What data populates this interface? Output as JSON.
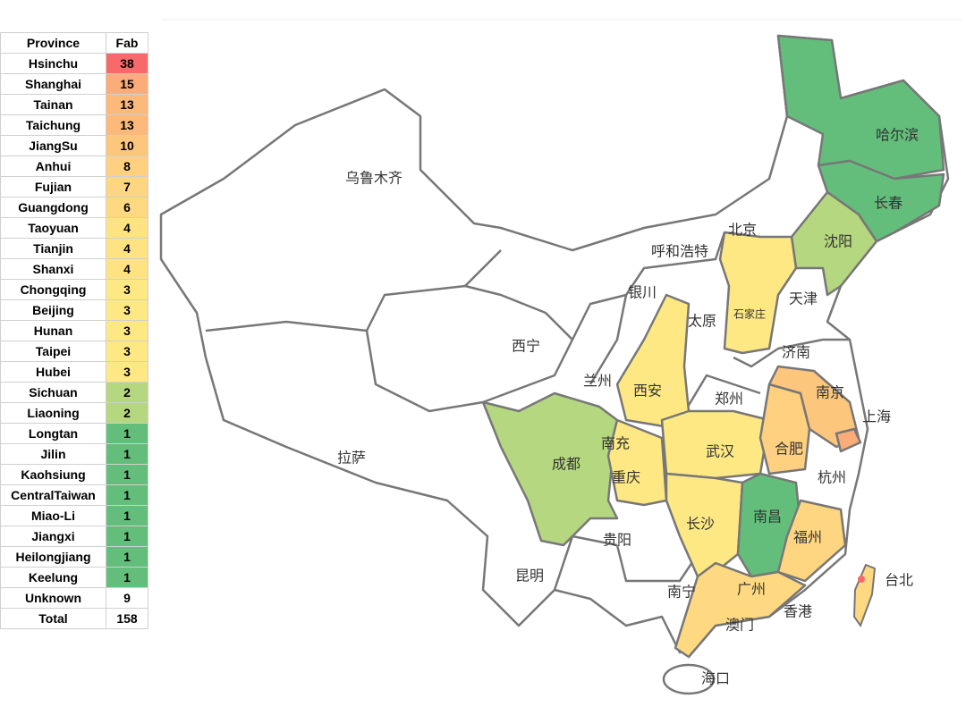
{
  "table": {
    "header": [
      "Province",
      "Fab"
    ],
    "rows": [
      {
        "province": "Hsinchu",
        "fab": 38,
        "color": "#f8696b"
      },
      {
        "province": "Shanghai",
        "fab": 15,
        "color": "#fbac78"
      },
      {
        "province": "Tainan",
        "fab": 13,
        "color": "#fcb97a"
      },
      {
        "province": "Taichung",
        "fab": 13,
        "color": "#fcb97a"
      },
      {
        "province": "JiangSu",
        "fab": 10,
        "color": "#fdc67d"
      },
      {
        "province": "Anhui",
        "fab": 8,
        "color": "#fed07f"
      },
      {
        "province": "Fujian",
        "fab": 7,
        "color": "#fed580"
      },
      {
        "province": "Guangdong",
        "fab": 6,
        "color": "#fed981"
      },
      {
        "province": "Taoyuan",
        "fab": 4,
        "color": "#ffe383"
      },
      {
        "province": "Tianjin",
        "fab": 4,
        "color": "#ffe383"
      },
      {
        "province": "Shanxi",
        "fab": 4,
        "color": "#ffe383"
      },
      {
        "province": "Chongqing",
        "fab": 3,
        "color": "#fee884"
      },
      {
        "province": "Beijing",
        "fab": 3,
        "color": "#fee884"
      },
      {
        "province": "Hunan",
        "fab": 3,
        "color": "#fee884"
      },
      {
        "province": "Taipei",
        "fab": 3,
        "color": "#fee884"
      },
      {
        "province": "Hubei",
        "fab": 3,
        "color": "#fee884"
      },
      {
        "province": "Sichuan",
        "fab": 2,
        "color": "#b5d77f"
      },
      {
        "province": "Liaoning",
        "fab": 2,
        "color": "#b5d77f"
      },
      {
        "province": "Longtan",
        "fab": 1,
        "color": "#63be7b"
      },
      {
        "province": "Jilin",
        "fab": 1,
        "color": "#63be7b"
      },
      {
        "province": "Kaohsiung",
        "fab": 1,
        "color": "#63be7b"
      },
      {
        "province": "CentralTaiwan",
        "fab": 1,
        "color": "#63be7b"
      },
      {
        "province": "Miao-Li",
        "fab": 1,
        "color": "#63be7b"
      },
      {
        "province": "Jiangxi",
        "fab": 1,
        "color": "#63be7b"
      },
      {
        "province": "Heilongjiang",
        "fab": 1,
        "color": "#63be7b"
      },
      {
        "province": "Keelung",
        "fab": 1,
        "color": "#63be7b"
      },
      {
        "province": "Unknown",
        "fab": 9,
        "color": "#ffffff"
      },
      {
        "province": "Total",
        "fab": 158,
        "color": "#ffffff"
      }
    ]
  },
  "map": {
    "labels": [
      "乌鲁木齐",
      "呼和浩特",
      "北京",
      "沈阳",
      "哈尔滨",
      "长春",
      "天津",
      "银川",
      "石家庄",
      "太原",
      "西宁",
      "济南",
      "兰州",
      "西安",
      "郑州",
      "南京",
      "上海",
      "南充",
      "合肥",
      "武汉",
      "成都",
      "重庆",
      "杭州",
      "拉萨",
      "长沙",
      "南昌",
      "福州",
      "贵阳",
      "昆明",
      "台北",
      "南宁",
      "广州",
      "香港",
      "澳门",
      "海口"
    ]
  }
}
